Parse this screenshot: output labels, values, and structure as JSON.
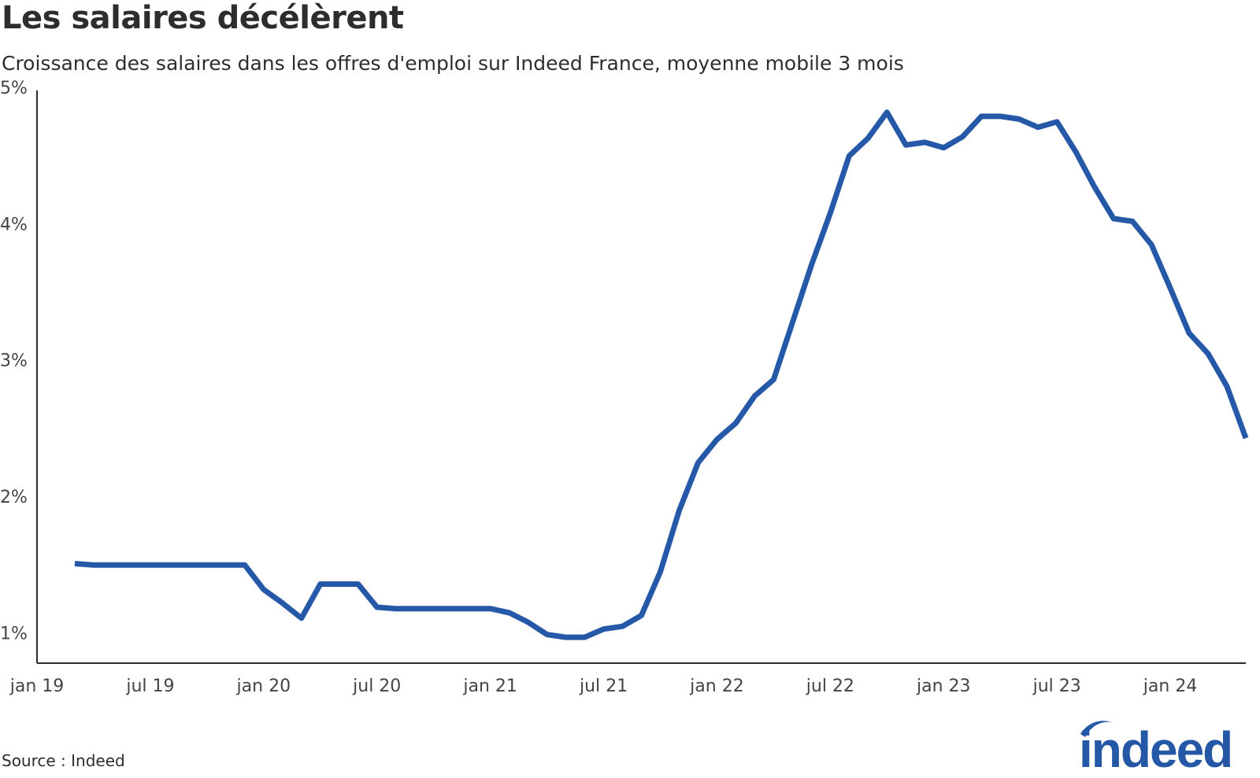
{
  "header": {
    "title": "Les salaires décélèrent",
    "subtitle": "Croissance des salaires dans les offres d'emploi sur Indeed France, moyenne mobile 3 mois"
  },
  "footer": {
    "source": "Source : Indeed",
    "logo_text": "indeed"
  },
  "colors": {
    "line": "#2559a8",
    "axis": "#2d2d2d",
    "text": "#2d2d2d",
    "logo": "#2557a7"
  },
  "chart_data": {
    "type": "line",
    "title": "Les salaires décélèrent",
    "subtitle": "Croissance des salaires dans les offres d'emploi sur Indeed France, moyenne mobile 3 mois",
    "xlabel": "",
    "ylabel": "",
    "ylim": [
      0.8,
      5
    ],
    "grid": false,
    "legend": "none",
    "y_ticks": [
      1,
      2,
      3,
      4,
      5
    ],
    "y_tick_labels": [
      "1%",
      "2%",
      "3%",
      "4%",
      "5%"
    ],
    "x_ticks": [
      "2019-01",
      "2019-07",
      "2020-01",
      "2020-07",
      "2021-01",
      "2021-07",
      "2022-01",
      "2022-07",
      "2023-01",
      "2023-07",
      "2024-01"
    ],
    "x_tick_labels": [
      "jan 19",
      "jul 19",
      "jan 20",
      "jul 20",
      "jan 21",
      "jul 21",
      "jan 22",
      "jul 22",
      "jan 23",
      "jul 23",
      "jan 24"
    ],
    "x_range": [
      "2019-01",
      "2024-05"
    ],
    "series": [
      {
        "x": [
          "2019-03",
          "2019-04",
          "2019-05",
          "2019-06",
          "2019-07",
          "2019-08",
          "2019-09",
          "2019-10",
          "2019-11",
          "2019-12",
          "2020-01",
          "2020-02",
          "2020-03",
          "2020-04",
          "2020-05",
          "2020-06",
          "2020-07",
          "2020-08",
          "2020-09",
          "2020-10",
          "2020-11",
          "2020-12",
          "2021-01",
          "2021-02",
          "2021-03",
          "2021-04",
          "2021-05",
          "2021-06",
          "2021-07",
          "2021-08",
          "2021-09",
          "2021-10",
          "2021-11",
          "2021-12",
          "2022-01",
          "2022-02",
          "2022-03",
          "2022-04",
          "2022-05",
          "2022-06",
          "2022-07",
          "2022-08",
          "2022-09",
          "2022-10",
          "2022-11",
          "2022-12",
          "2023-01",
          "2023-02",
          "2023-03",
          "2023-04",
          "2023-05",
          "2023-06",
          "2023-07",
          "2023-08",
          "2023-09",
          "2023-10",
          "2023-11",
          "2023-12",
          "2024-01",
          "2024-02",
          "2024-03",
          "2024-04",
          "2024-05"
        ],
        "values": [
          1.53,
          1.52,
          1.52,
          1.52,
          1.52,
          1.52,
          1.52,
          1.52,
          1.52,
          1.52,
          1.34,
          1.24,
          1.13,
          1.38,
          1.38,
          1.38,
          1.21,
          1.2,
          1.2,
          1.2,
          1.2,
          1.2,
          1.2,
          1.17,
          1.1,
          1.01,
          0.99,
          0.99,
          1.05,
          1.07,
          1.15,
          1.47,
          1.92,
          2.27,
          2.44,
          2.56,
          2.76,
          2.88,
          3.3,
          3.72,
          4.1,
          4.52,
          4.65,
          4.84,
          4.6,
          4.62,
          4.58,
          4.66,
          4.81,
          4.81,
          4.79,
          4.73,
          4.77,
          4.55,
          4.29,
          4.06,
          4.04,
          3.87,
          3.55,
          3.22,
          3.07,
          2.83,
          2.45
        ]
      }
    ]
  }
}
